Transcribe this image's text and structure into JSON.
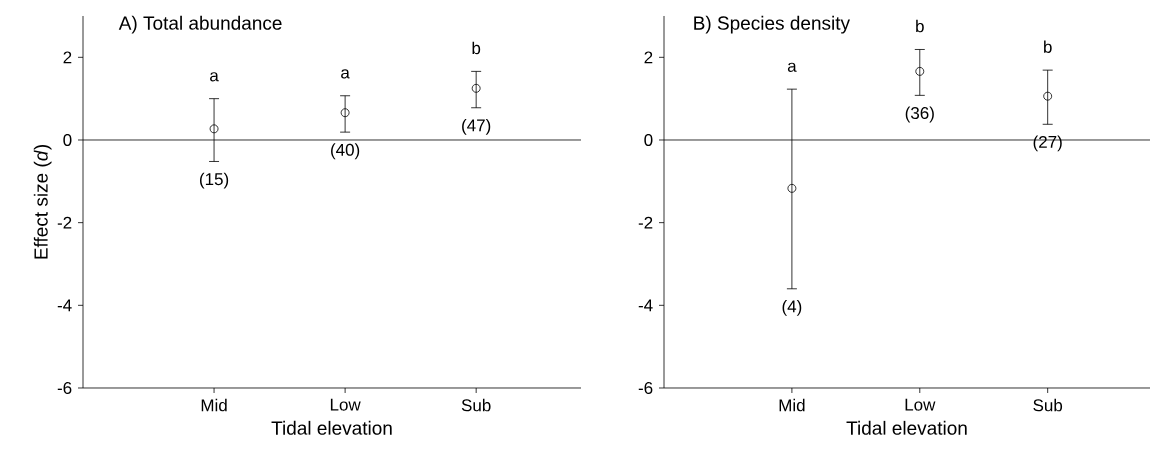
{
  "chart_data": [
    {
      "type": "scatter",
      "title": "A) Total abundance",
      "xlabel": "Tidal elevation",
      "ylabel": "Effect size (*d*)",
      "categories": [
        "Mid",
        "Low",
        "Sub"
      ],
      "series": [
        {
          "color": "#000000",
          "values": [
            0.27,
            0.66,
            1.25
          ],
          "errors": [
            [
              -0.52,
              1.0
            ],
            [
              0.19,
              1.07
            ],
            [
              0.78,
              1.66
            ]
          ]
        }
      ],
      "marker": "circle",
      "ylim": [
        -6,
        3
      ],
      "yticks": [
        -6,
        -4,
        -2,
        0,
        2
      ],
      "ref_lines": [
        {
          "axis": "y",
          "value": 0
        }
      ],
      "annotations": [
        "a",
        "a",
        "b",
        "(15)",
        "(40)",
        "(47)"
      ]
    },
    {
      "type": "scatter",
      "title": "B) Species density",
      "xlabel": "Tidal elevation",
      "categories": [
        "Mid",
        "Low",
        "Sub"
      ],
      "series": [
        {
          "color": "#000000",
          "values": [
            -1.17,
            1.66,
            1.06
          ],
          "errors": [
            [
              -3.6,
              1.23
            ],
            [
              1.08,
              2.19
            ],
            [
              0.38,
              1.69
            ]
          ]
        }
      ],
      "marker": "circle",
      "ylim": [
        -6,
        3
      ],
      "yticks": [
        -6,
        -4,
        -2,
        0,
        2
      ],
      "ref_lines": [
        {
          "axis": "y",
          "value": 0
        }
      ],
      "annotations": [
        "a",
        "b",
        "b",
        "(4)",
        "(36)",
        "(27)"
      ]
    }
  ]
}
